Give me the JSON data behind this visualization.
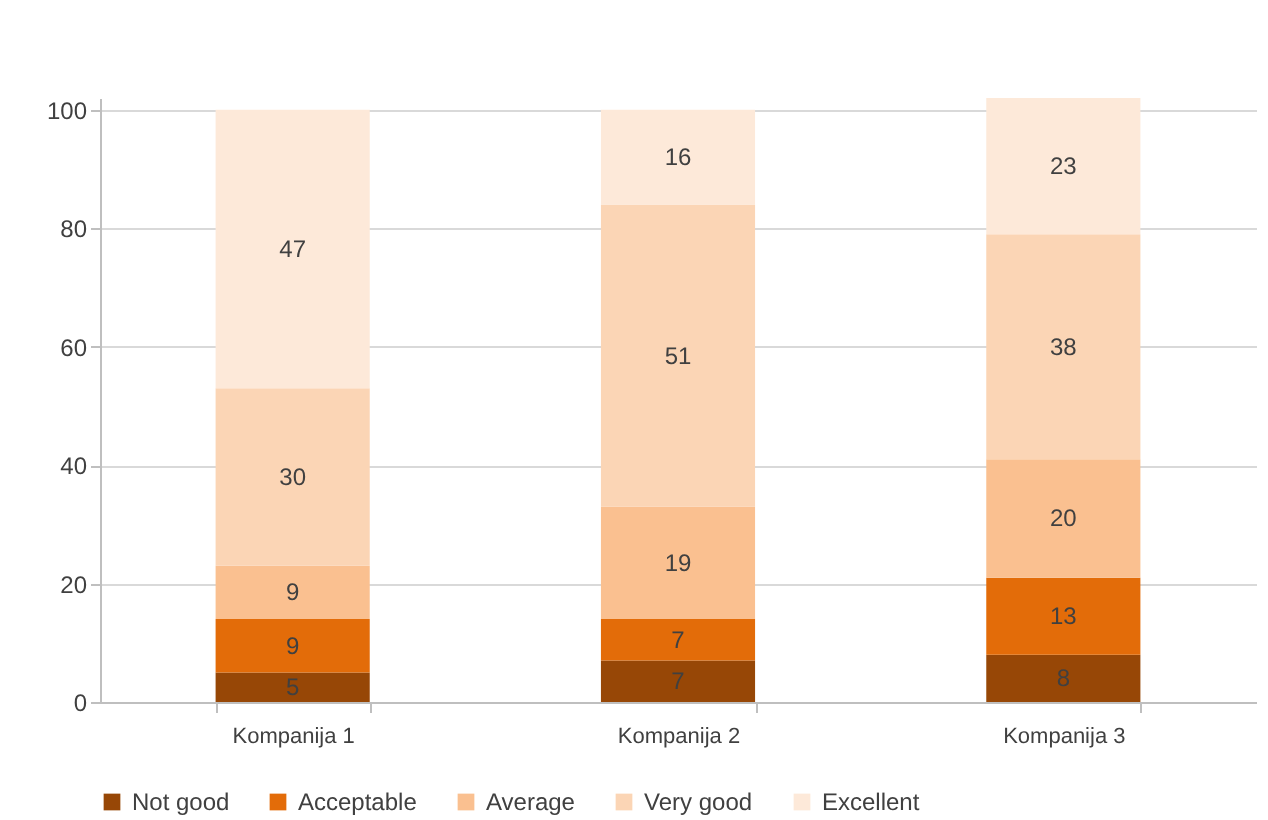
{
  "chart_data": {
    "type": "bar",
    "stacked": true,
    "data_labels": true,
    "grid": "y",
    "legend": "bottom",
    "categories": [
      "Kompanija 1",
      "Kompanija 2",
      "Kompanija 3"
    ],
    "series": [
      {
        "name": "Not good",
        "color": "#974706",
        "values": [
          5,
          7,
          8
        ]
      },
      {
        "name": "Acceptable",
        "color": "#e36c09",
        "values": [
          9,
          7,
          13
        ]
      },
      {
        "name": "Average",
        "color": "#fac090",
        "values": [
          9,
          19,
          20
        ]
      },
      {
        "name": "Very good",
        "color": "#fbd5b5",
        "values": [
          30,
          51,
          38
        ]
      },
      {
        "name": "Excellent",
        "color": "#fde9d9",
        "values": [
          47,
          16,
          23
        ]
      }
    ],
    "ylim": [
      0,
      102
    ],
    "yticks": [
      0,
      20,
      40,
      60,
      80,
      100
    ]
  }
}
